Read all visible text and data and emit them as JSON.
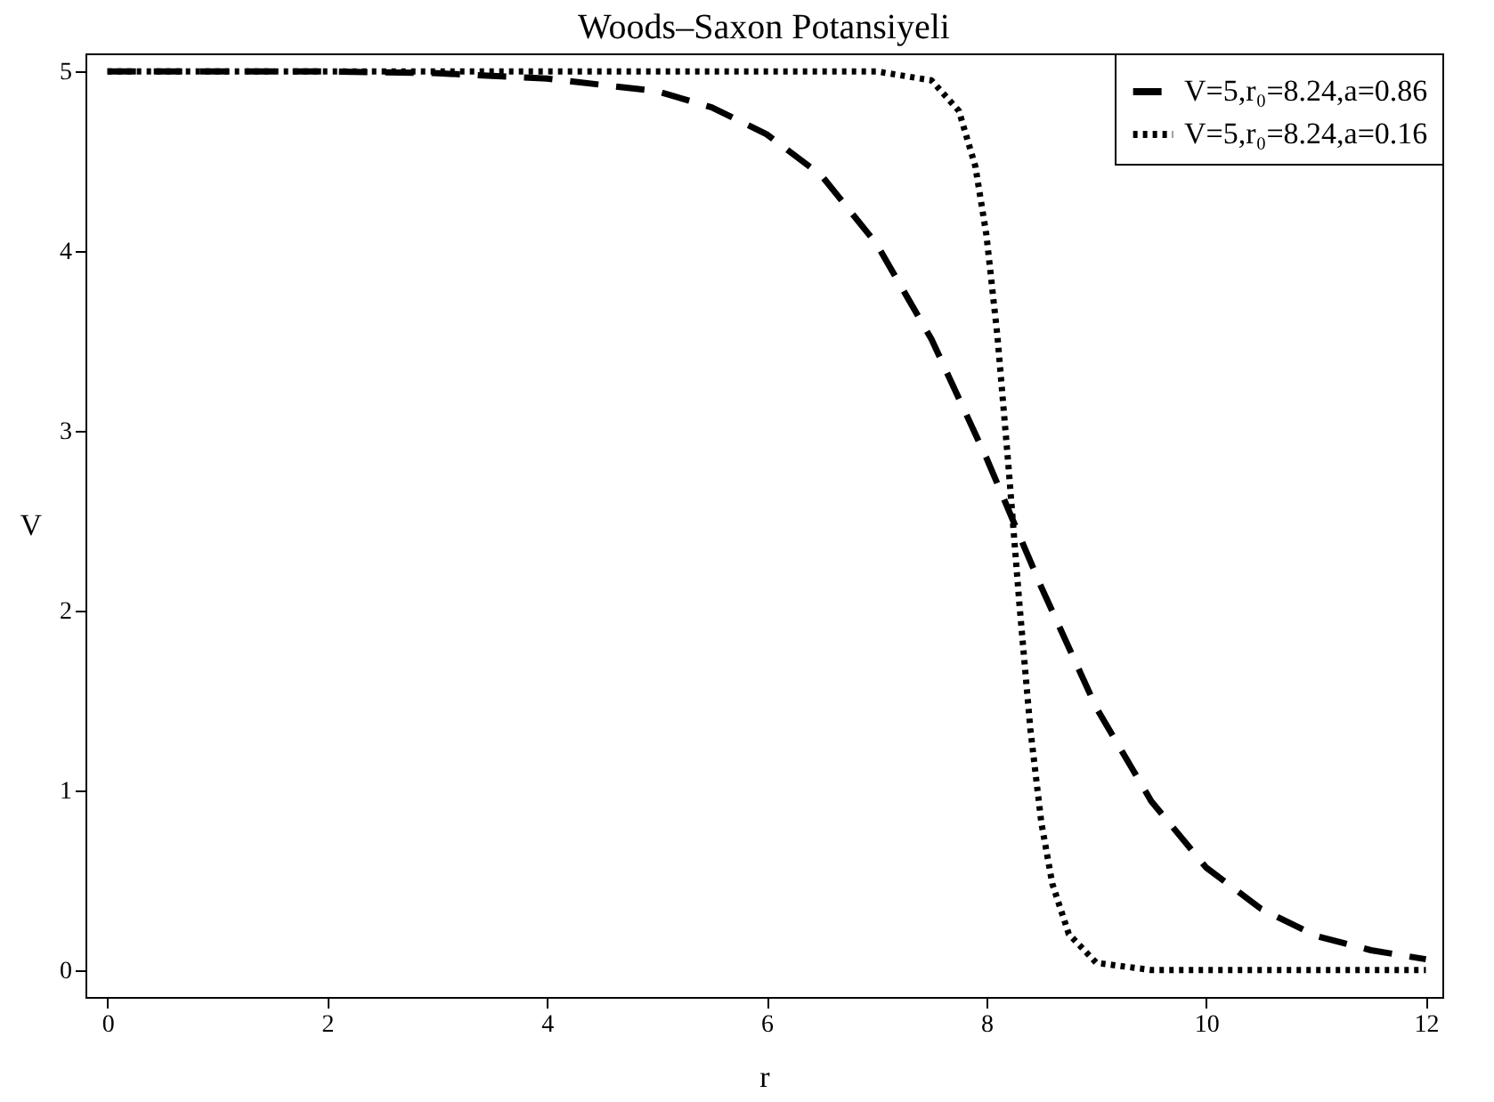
{
  "chart_data": {
    "type": "line",
    "title": "Woods–Saxon Potansiyeli",
    "xlabel": "r",
    "ylabel": "V",
    "xlim": [
      -0.2,
      12.15
    ],
    "ylim": [
      -0.15,
      5.1
    ],
    "xticks": [
      0,
      2,
      4,
      6,
      8,
      10,
      12
    ],
    "yticks": [
      0,
      1,
      2,
      3,
      4,
      5
    ],
    "grid": false,
    "legend": "top right",
    "marker": "none",
    "series": [
      {
        "name": "V=5,r₀=8.24,a=0.86",
        "color": "#000000",
        "line_style": "dashed",
        "x": [
          0,
          1,
          2,
          3,
          4,
          5,
          5.5,
          6,
          6.5,
          7,
          7.5,
          8,
          8.5,
          9,
          9.5,
          10,
          10.5,
          11,
          11.5,
          12
        ],
        "values": [
          5.0,
          5.0,
          5.0,
          4.99,
          4.96,
          4.89,
          4.8,
          4.65,
          4.42,
          4.04,
          3.51,
          2.85,
          2.13,
          1.46,
          0.94,
          0.57,
          0.34,
          0.19,
          0.11,
          0.06
        ]
      },
      {
        "name": "V=5,r₀=8.24,a=0.16",
        "color": "#000000",
        "line_style": "dotted",
        "x": [
          0,
          1,
          2,
          3,
          4,
          5,
          6,
          7,
          7.5,
          7.75,
          7.9,
          8.0,
          8.1,
          8.2,
          8.3,
          8.4,
          8.5,
          8.6,
          8.75,
          9.0,
          9.5,
          10,
          11,
          12
        ],
        "values": [
          5.0,
          5.0,
          5.0,
          5.0,
          5.0,
          5.0,
          5.0,
          5.0,
          4.95,
          4.78,
          4.47,
          4.09,
          3.53,
          2.81,
          2.04,
          1.34,
          0.82,
          0.48,
          0.2,
          0.04,
          0.0,
          0.0,
          0.0,
          0.0
        ]
      }
    ]
  }
}
